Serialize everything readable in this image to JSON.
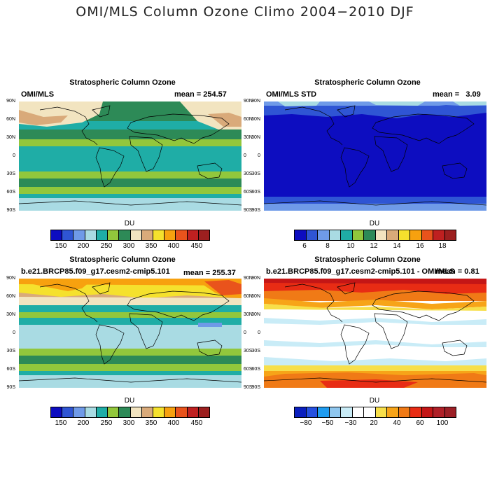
{
  "figure": {
    "title": "OMI/MLS Column Ozone Climo 2004−2010 DJF"
  },
  "lat_ticks": [
    "90N",
    "60N",
    "30N",
    "0",
    "30S",
    "60S",
    "90S"
  ],
  "panels": [
    {
      "title": "Stratospheric Column Ozone",
      "left_label": "OMI/MLS",
      "right_label": "mean = 254.57",
      "colorbar": {
        "unit": "DU",
        "colors": [
          "#0d0dc0",
          "#2f55d4",
          "#6f9ae8",
          "#a9dbe3",
          "#1fada6",
          "#92c73c",
          "#2d8a57",
          "#f2e4c0",
          "#d9aa7a",
          "#f5e12d",
          "#f7a10f",
          "#e9531c",
          "#bf2020",
          "#9c1f1f"
        ],
        "labels": [
          "150",
          "200",
          "250",
          "300",
          "350",
          "400",
          "450"
        ]
      }
    },
    {
      "title": "Stratospheric Column Ozone",
      "left_label": "OMI/MLS STD",
      "right_label": "mean =   3.09",
      "colorbar": {
        "unit": "DU",
        "colors": [
          "#0d0dc0",
          "#2f55d4",
          "#6f9ae8",
          "#a9dbe3",
          "#1fada6",
          "#92c73c",
          "#2d8a57",
          "#f2e4c0",
          "#d9aa7a",
          "#f5e12d",
          "#f7a10f",
          "#e9531c",
          "#bf2020",
          "#9c1f1f"
        ],
        "labels": [
          "6",
          "8",
          "10",
          "12",
          "14",
          "16",
          "18"
        ]
      }
    },
    {
      "title": "Stratospheric Column Ozone",
      "left_label": "b.e21.BRCP85.f09_g17.cesm2-cmip5.101",
      "right_label": "mean = 255.37",
      "colorbar": {
        "unit": "DU",
        "colors": [
          "#0d0dc0",
          "#2f55d4",
          "#6f9ae8",
          "#a9dbe3",
          "#1fada6",
          "#92c73c",
          "#2d8a57",
          "#f2e4c0",
          "#d9aa7a",
          "#f5e12d",
          "#f7a10f",
          "#e9531c",
          "#bf2020",
          "#9c1f1f"
        ],
        "labels": [
          "150",
          "200",
          "250",
          "300",
          "350",
          "400",
          "450"
        ]
      }
    },
    {
      "title": "Stratospheric Column Ozone",
      "left_label": "b.e21.BRCP85.f09_g17.cesm2-cmip5.101 - OMI/MLS",
      "right_label": "mean = 0.81",
      "colorbar": {
        "unit": "DU",
        "colors": [
          "#0a1fbf",
          "#2550e0",
          "#1f9cf0",
          "#8fc7ef",
          "#c9ecf7",
          "#ffffff",
          "#ffffff",
          "#f7df4a",
          "#f7a418",
          "#f07a16",
          "#e82c14",
          "#c41616",
          "#b02028",
          "#9c1f26"
        ],
        "labels": [
          "−80",
          "−50",
          "−30",
          "20",
          "40",
          "60",
          "100"
        ]
      }
    }
  ]
}
